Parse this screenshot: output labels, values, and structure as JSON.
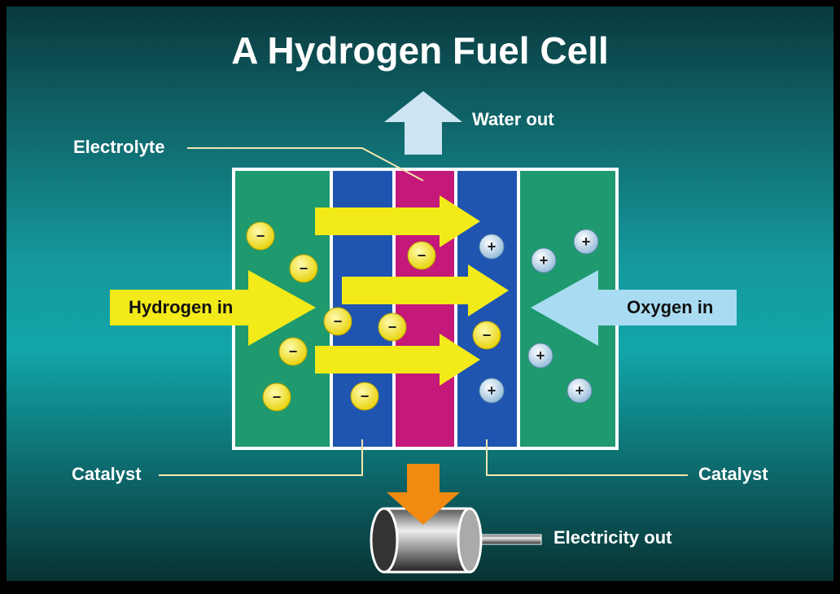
{
  "title": "A Hydrogen Fuel Cell",
  "labels": {
    "water_out": "Water out",
    "electrolyte": "Electrolyte",
    "hydrogen_in": "Hydrogen in",
    "oxygen_in": "Oxygen in",
    "catalyst_left": "Catalyst",
    "catalyst_right": "Catalyst",
    "electricity_out": "Electricity out"
  },
  "ions": {
    "negative": "−",
    "positive": "+"
  }
}
